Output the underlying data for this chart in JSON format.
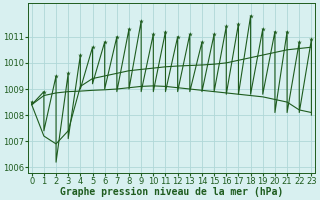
{
  "xlabel": "Graphe pression niveau de la mer (hPa)",
  "hours": [
    0,
    1,
    2,
    3,
    4,
    5,
    6,
    7,
    8,
    9,
    10,
    11,
    12,
    13,
    14,
    15,
    16,
    17,
    18,
    19,
    20,
    21,
    22,
    23
  ],
  "pressure_high": [
    1008.5,
    1008.9,
    1009.5,
    1009.6,
    1010.3,
    1010.6,
    1010.8,
    1011.0,
    1011.3,
    1011.6,
    1011.1,
    1011.2,
    1011.0,
    1011.1,
    1010.8,
    1011.1,
    1011.4,
    1011.5,
    1011.8,
    1011.3,
    1011.2,
    1011.2,
    1010.8,
    1010.9
  ],
  "pressure_low": [
    1008.4,
    1007.4,
    1006.2,
    1007.1,
    1009.0,
    1009.2,
    1009.0,
    1008.9,
    1009.0,
    1008.9,
    1008.9,
    1008.9,
    1008.9,
    1008.9,
    1008.9,
    1008.9,
    1008.8,
    1008.8,
    1008.8,
    1008.8,
    1008.1,
    1008.1,
    1008.1,
    1008.0
  ],
  "trend_up": [
    1008.4,
    1007.2,
    1006.9,
    1007.4,
    1009.1,
    1009.4,
    1009.5,
    1009.6,
    1009.7,
    1009.75,
    1009.8,
    1009.85,
    1009.88,
    1009.9,
    1009.92,
    1009.95,
    1010.0,
    1010.1,
    1010.2,
    1010.3,
    1010.4,
    1010.5,
    1010.55,
    1010.6
  ],
  "trend_down": [
    1008.4,
    1008.75,
    1008.85,
    1008.9,
    1008.92,
    1008.95,
    1008.97,
    1009.0,
    1009.05,
    1009.1,
    1009.12,
    1009.1,
    1009.05,
    1009.0,
    1008.95,
    1008.9,
    1008.85,
    1008.8,
    1008.75,
    1008.7,
    1008.6,
    1008.5,
    1008.2,
    1008.1
  ],
  "bg_color": "#d8f0f0",
  "grid_color": "#b0d8d8",
  "line_color": "#1e5c1e",
  "ylim": [
    1005.8,
    1012.3
  ],
  "yticks": [
    1006,
    1007,
    1008,
    1009,
    1010,
    1011
  ],
  "xlim": [
    -0.3,
    23.3
  ],
  "fontsize": 7
}
